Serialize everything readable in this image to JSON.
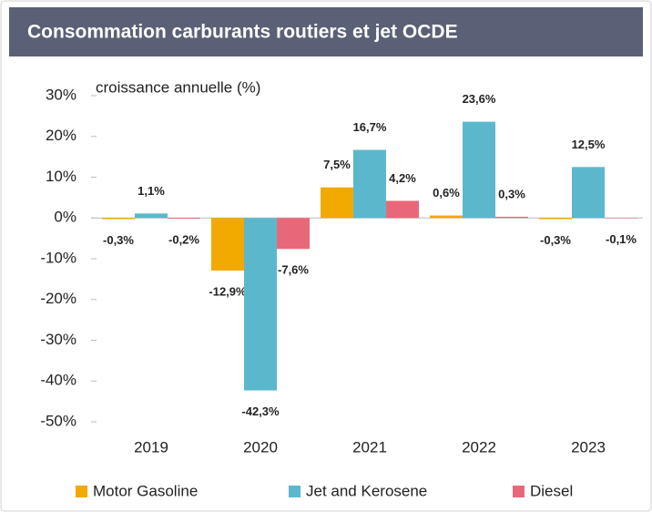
{
  "chart_data": {
    "type": "bar",
    "title": "Consommation carburants routiers et jet OCDE",
    "y_label": "croissance annuelle (%)",
    "categories": [
      "2019",
      "2020",
      "2021",
      "2022",
      "2023"
    ],
    "series": [
      {
        "name": "Motor Gasoline",
        "color": "#f2a900",
        "values": [
          -0.3,
          -12.9,
          7.5,
          0.6,
          -0.3
        ],
        "value_labels": [
          "-0,3%",
          "-12,9%",
          "7,5%",
          "0,6%",
          "-0,3%"
        ]
      },
      {
        "name": "Jet and Kerosene",
        "color": "#5bb8cc",
        "values": [
          1.1,
          -42.3,
          16.7,
          23.6,
          12.5
        ],
        "value_labels": [
          "1,1%",
          "-42,3%",
          "16,7%",
          "23,6%",
          "12,5%"
        ]
      },
      {
        "name": "Diesel",
        "color": "#e8687a",
        "values": [
          -0.2,
          -7.6,
          4.2,
          0.3,
          -0.1
        ],
        "value_labels": [
          "-0,2%",
          "-7,6%",
          "4,2%",
          "0,3%",
          "-0,1%"
        ]
      }
    ],
    "ylim": [
      -50,
      30
    ],
    "yticks": [
      {
        "value": -50,
        "label": "-50%"
      },
      {
        "value": -40,
        "label": "-40%"
      },
      {
        "value": -30,
        "label": "-30%"
      },
      {
        "value": -20,
        "label": "-20%"
      },
      {
        "value": -10,
        "label": "-10%"
      },
      {
        "value": 0,
        "label": "0%"
      },
      {
        "value": 10,
        "label": "10%"
      },
      {
        "value": 20,
        "label": "20%"
      },
      {
        "value": 30,
        "label": "30%"
      }
    ],
    "grid": false,
    "legend": "bottom"
  }
}
